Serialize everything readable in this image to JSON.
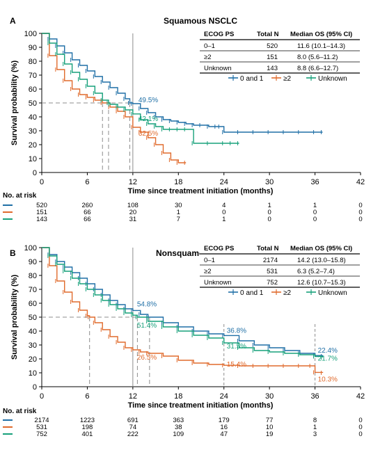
{
  "panels": [
    {
      "letter": "A",
      "title": "Squamous NSCLC",
      "table": {
        "headers": [
          "ECOG PS",
          "Total N",
          "Median OS (95% CI)"
        ],
        "rows": [
          [
            "0–1",
            "520",
            "11.6 (10.1–14.3)"
          ],
          [
            "≥2",
            "151",
            "8.0 (5.6–11.2)"
          ],
          [
            "Unknown",
            "143",
            "8.8 (6.6–12.7)"
          ]
        ]
      },
      "at_risk": [
        [
          "520",
          "260",
          "108",
          "30",
          "4",
          "1",
          "1",
          "0"
        ],
        [
          "151",
          "66",
          "20",
          "1",
          "0",
          "0",
          "0",
          "0"
        ],
        [
          "143",
          "66",
          "31",
          "7",
          "1",
          "0",
          "0",
          "0"
        ]
      ]
    },
    {
      "letter": "B",
      "title": "Nonsquamous NSCLC",
      "table": {
        "headers": [
          "ECOG PS",
          "Total N",
          "Median OS (95% CI)"
        ],
        "rows": [
          [
            "0–1",
            "2174",
            "14.2 (13.0–15.8)"
          ],
          [
            "≥2",
            "531",
            "6.3 (5.2–7.4)"
          ],
          [
            "Unknown",
            "752",
            "12.6 (10.7–15.3)"
          ]
        ]
      },
      "at_risk": [
        [
          "2174",
          "1223",
          "691",
          "363",
          "179",
          "77",
          "8",
          "0"
        ],
        [
          "531",
          "198",
          "74",
          "38",
          "16",
          "10",
          "1",
          "0"
        ],
        [
          "752",
          "401",
          "222",
          "109",
          "47",
          "19",
          "3",
          "0"
        ]
      ]
    }
  ],
  "legend_labels": [
    "0 and 1",
    "≥2",
    "Unknown"
  ],
  "at_risk_label": "No. at risk",
  "colors": {
    "ecog01": "#1f6fa6",
    "ecog2": "#e06a2c",
    "unknown": "#16a07a",
    "ref": "#8c8c8c"
  },
  "chart_data": [
    {
      "type": "line",
      "title": "Squamous NSCLC",
      "xlabel": "Time since treatment initiation (months)",
      "ylabel": "Survival probability (%)",
      "xlim": [
        0,
        42
      ],
      "ylim": [
        0,
        100
      ],
      "xticks": [
        0,
        6,
        12,
        18,
        24,
        30,
        36,
        42
      ],
      "yticks": [
        0,
        10,
        20,
        30,
        40,
        50,
        60,
        70,
        80,
        90,
        100
      ],
      "series": [
        {
          "name": "0 and 1",
          "x": [
            0,
            1,
            2,
            3,
            4,
            5,
            6,
            7,
            8,
            9,
            10,
            11,
            11.6,
            12,
            13,
            14,
            15,
            16,
            17,
            18,
            19,
            20,
            21,
            22,
            23,
            23.5,
            24,
            26,
            28,
            30,
            32,
            34,
            36,
            37
          ],
          "y": [
            100,
            96,
            91,
            86,
            81,
            77,
            73,
            69,
            65,
            61,
            57,
            53,
            50,
            49.5,
            46,
            43,
            40,
            38,
            37,
            36,
            35,
            34,
            34,
            33,
            33,
            33,
            29,
            29,
            29,
            29,
            29,
            29,
            29,
            29
          ]
        },
        {
          "name": "≥2",
          "x": [
            0,
            1,
            2,
            3,
            4,
            5,
            6,
            7,
            8,
            9,
            10,
            11,
            12,
            13,
            14,
            15,
            16,
            17,
            18,
            19
          ],
          "y": [
            100,
            84,
            74,
            66,
            60,
            56,
            54,
            52,
            50,
            47,
            44,
            40,
            32.5,
            29,
            25,
            20,
            14,
            9,
            7,
            7
          ]
        },
        {
          "name": "Unknown",
          "x": [
            0,
            1,
            2,
            3,
            4,
            5,
            6,
            7,
            8,
            8.8,
            9,
            10,
            11,
            12,
            13,
            14,
            15,
            16,
            17,
            18,
            19,
            20,
            22,
            24,
            25,
            26
          ],
          "y": [
            100,
            93,
            85,
            78,
            72,
            67,
            62,
            57,
            52,
            50,
            49,
            47,
            45,
            42.1,
            38,
            35,
            33,
            31,
            31,
            31,
            31,
            21,
            21,
            21,
            21,
            21
          ]
        }
      ],
      "annotations": [
        {
          "text": "49.5%",
          "x": 12,
          "y": 49.5
        },
        {
          "text": "42.1%",
          "x": 12,
          "y": 42.1
        },
        {
          "text": "32.5%",
          "x": 12,
          "y": 32.5
        }
      ],
      "medians": [
        11.6,
        8.0,
        8.8
      ],
      "ref_line_x": 12
    },
    {
      "type": "line",
      "title": "Nonsquamous NSCLC",
      "xlabel": "Time since treatment initiation (months)",
      "ylabel": "Survival probability (%)",
      "xlim": [
        0,
        42
      ],
      "ylim": [
        0,
        100
      ],
      "xticks": [
        0,
        6,
        12,
        18,
        24,
        30,
        36,
        42
      ],
      "yticks": [
        0,
        10,
        20,
        30,
        40,
        50,
        60,
        70,
        80,
        90,
        100
      ],
      "series": [
        {
          "name": "0 and 1",
          "x": [
            0,
            1,
            2,
            3,
            4,
            5,
            6,
            7,
            8,
            9,
            10,
            11,
            12,
            13,
            14,
            14.2,
            16,
            18,
            20,
            22,
            24,
            26,
            28,
            30,
            32,
            34,
            36,
            37
          ],
          "y": [
            100,
            95,
            90,
            86,
            82,
            78,
            74,
            70,
            66,
            62,
            59,
            56,
            54.8,
            52,
            50,
            50,
            46,
            43,
            40,
            38,
            36.8,
            33,
            30,
            28,
            26,
            24,
            22.4,
            22
          ]
        },
        {
          "name": "≥2",
          "x": [
            0,
            1,
            2,
            3,
            4,
            5,
            6,
            6.3,
            7,
            8,
            9,
            10,
            11,
            12,
            13,
            14,
            16,
            18,
            20,
            22,
            24,
            26,
            28,
            30,
            32,
            34,
            35.5,
            36,
            37
          ],
          "y": [
            100,
            87,
            76,
            68,
            61,
            55,
            51,
            50,
            46,
            41,
            36,
            32,
            28,
            26.5,
            25,
            24,
            22,
            19,
            17,
            16,
            15.4,
            15,
            15,
            15,
            15,
            15,
            15,
            10.3,
            10
          ]
        },
        {
          "name": "Unknown",
          "x": [
            0,
            1,
            2,
            3,
            4,
            5,
            6,
            7,
            8,
            9,
            10,
            11,
            12,
            12.6,
            14,
            16,
            18,
            20,
            22,
            24,
            26,
            28,
            30,
            32,
            34,
            36,
            37
          ],
          "y": [
            100,
            94,
            88,
            83,
            78,
            74,
            70,
            66,
            62,
            59,
            56,
            53,
            51.4,
            50,
            47,
            43,
            40,
            37,
            35,
            31.5,
            28,
            26,
            25,
            24,
            23,
            21.7,
            21
          ]
        }
      ],
      "annotations": [
        {
          "text": "54.8%",
          "x": 12,
          "y": 54.8
        },
        {
          "text": "51.4%",
          "x": 12,
          "y": 51.4
        },
        {
          "text": "26.5%",
          "x": 12,
          "y": 26.5
        },
        {
          "text": "36.8%",
          "x": 24,
          "y": 36.8
        },
        {
          "text": "31.5%",
          "x": 24,
          "y": 31.5
        },
        {
          "text": "15.4%",
          "x": 24,
          "y": 15.4
        },
        {
          "text": "22.4%",
          "x": 36,
          "y": 22.4
        },
        {
          "text": "21.7%",
          "x": 36,
          "y": 21.7
        },
        {
          "text": "10.3%",
          "x": 36,
          "y": 10.3
        }
      ],
      "medians": [
        14.2,
        6.3,
        12.6
      ],
      "ref_line_x": [
        12,
        24,
        36
      ]
    }
  ]
}
